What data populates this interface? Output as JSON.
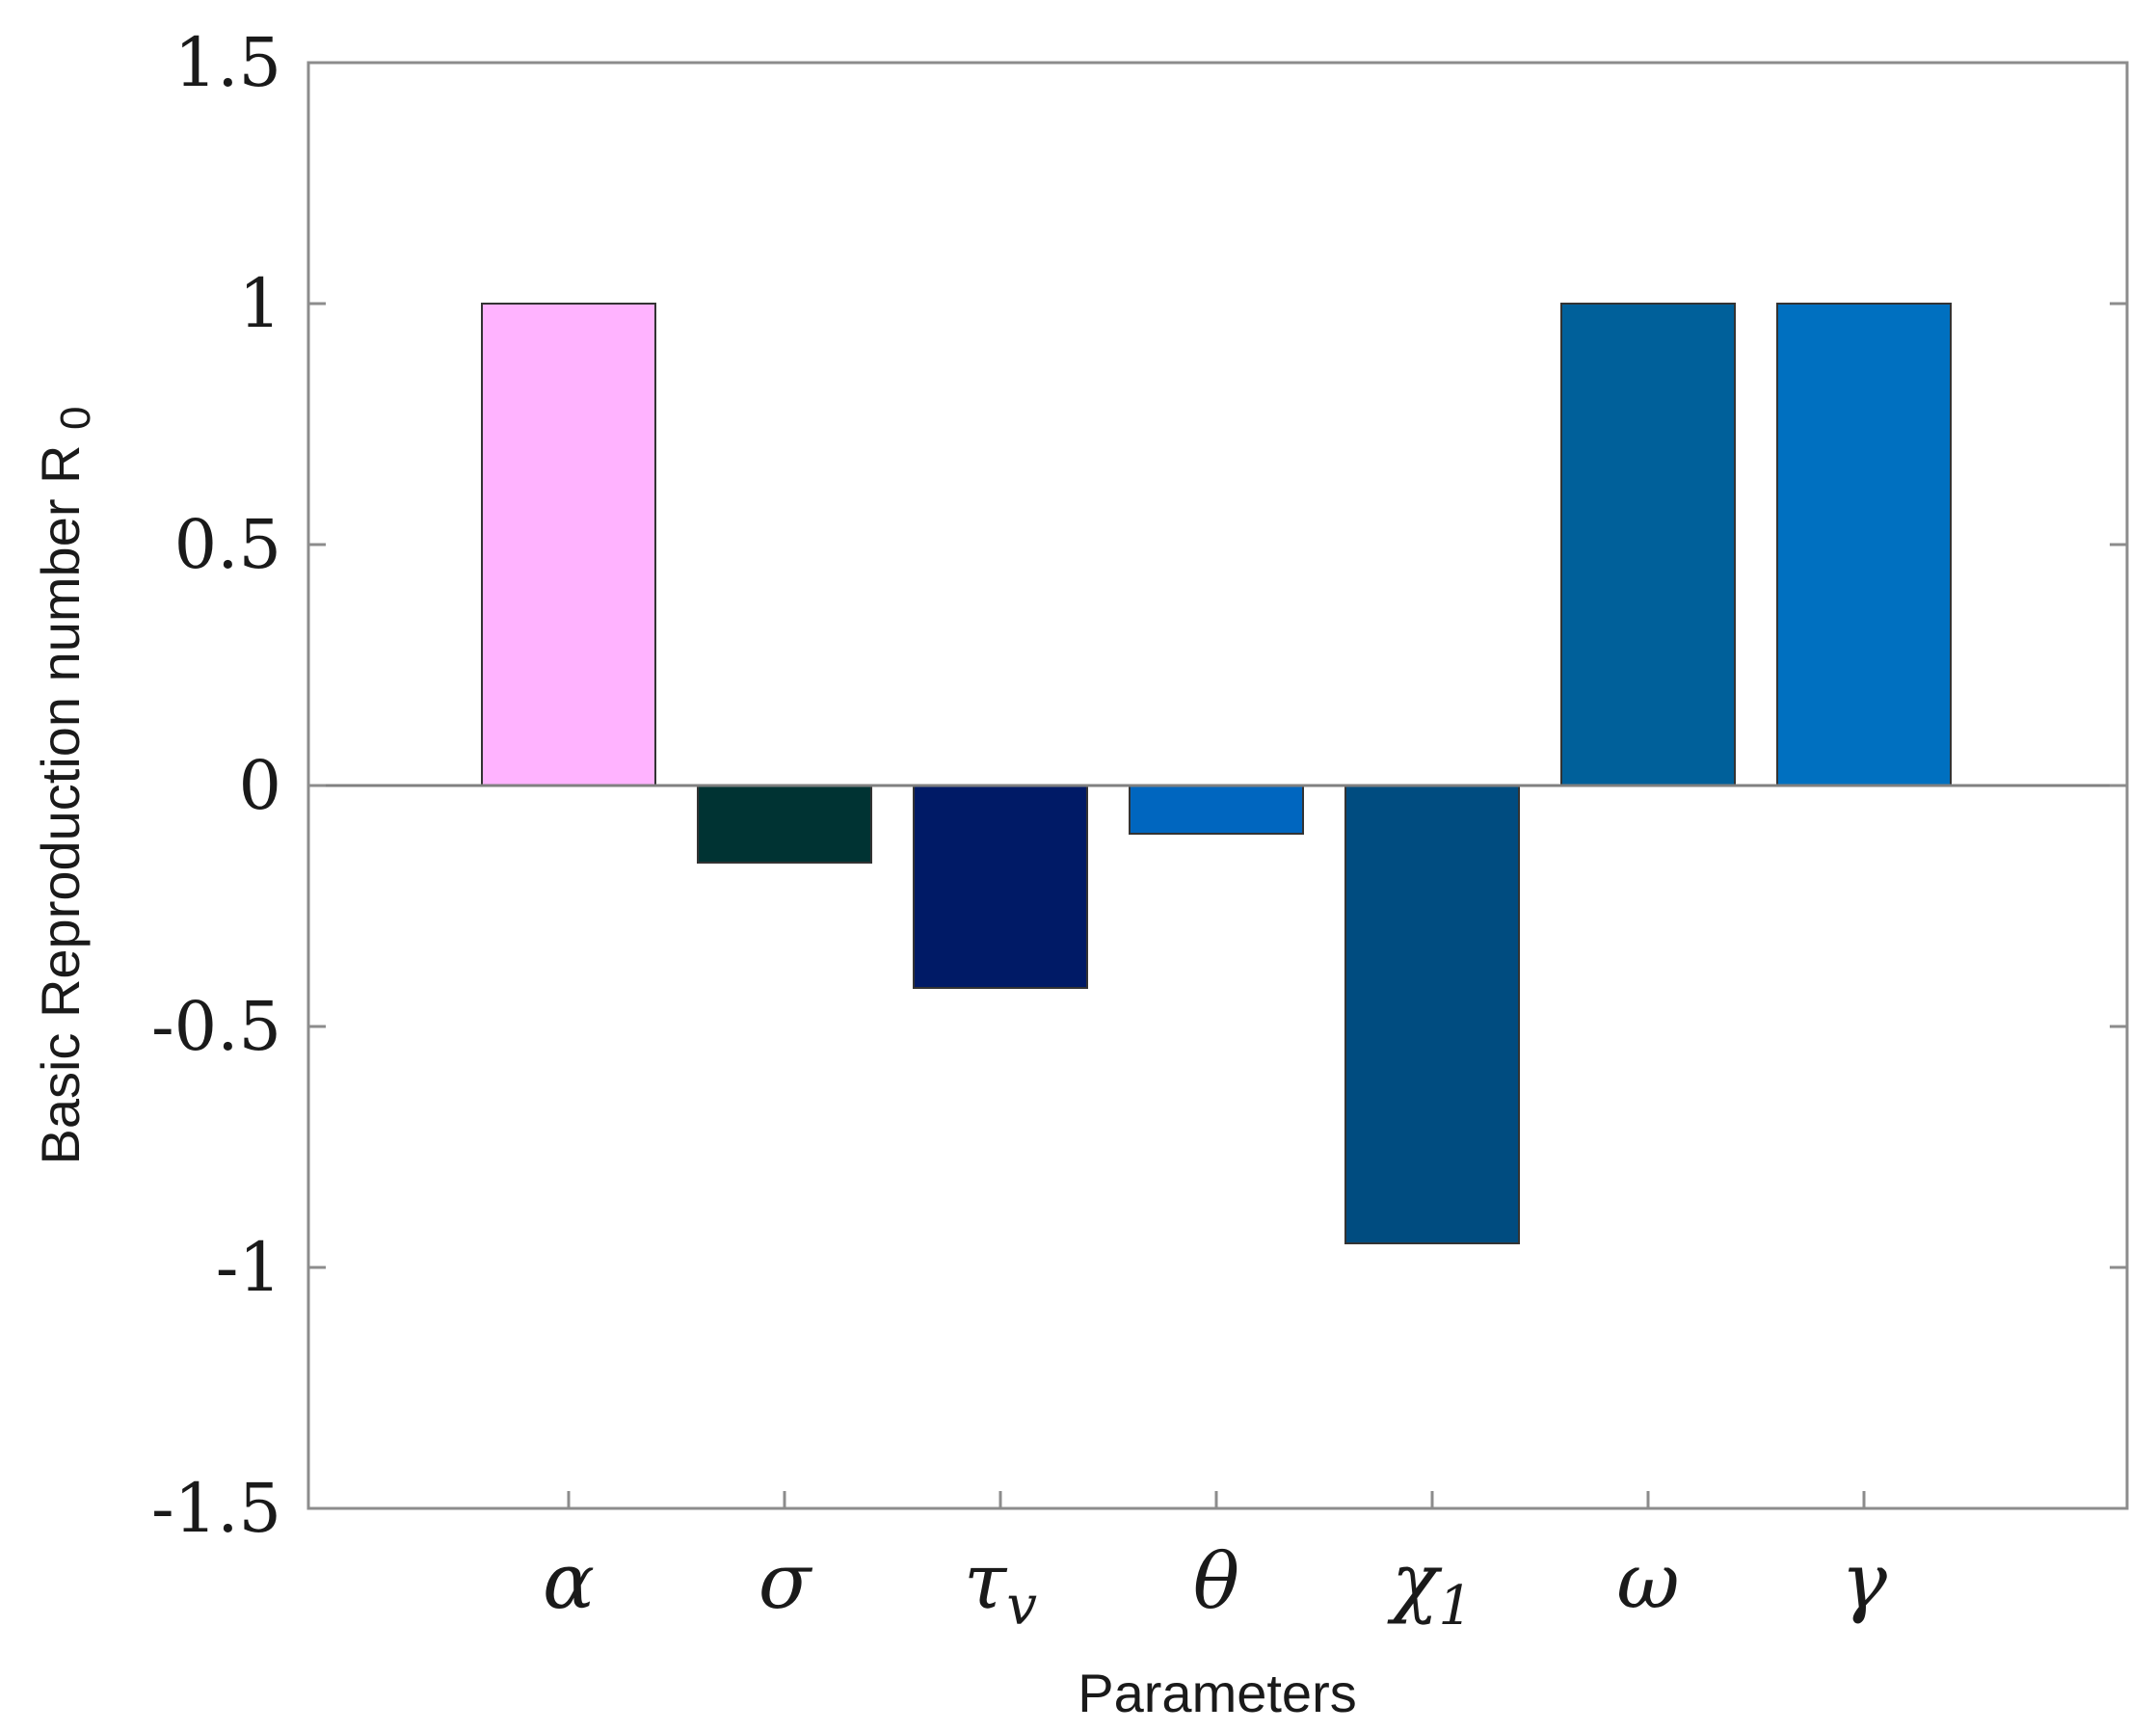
{
  "chart_data": {
    "type": "bar",
    "categories": [
      "α",
      "σ",
      "τ",
      "θ",
      "χ",
      "ω",
      "γ"
    ],
    "category_subscripts": [
      "",
      "",
      "v",
      "",
      "1",
      "",
      ""
    ],
    "values": [
      1.0,
      -0.16,
      -0.42,
      -0.1,
      -0.95,
      1.0,
      1.0
    ],
    "colors": [
      "#FFB3FF",
      "#003333",
      "#001A66",
      "#0066BF",
      "#004C80",
      "#00609A",
      "#0070C0"
    ],
    "xlabel": "Parameters",
    "ylabel": "Basic Reproduction number R",
    "ylabel_subscript": "0",
    "ylim": [
      -1.5,
      1.5
    ],
    "yticks": [
      -1.5,
      -1,
      -0.5,
      0,
      0.5,
      1,
      1.5
    ],
    "ytick_labels": [
      "-1.5",
      "-1",
      "-0.5",
      "0",
      "0.5",
      "1",
      "1.5"
    ],
    "grid": false,
    "box": true,
    "baseline": 0
  }
}
